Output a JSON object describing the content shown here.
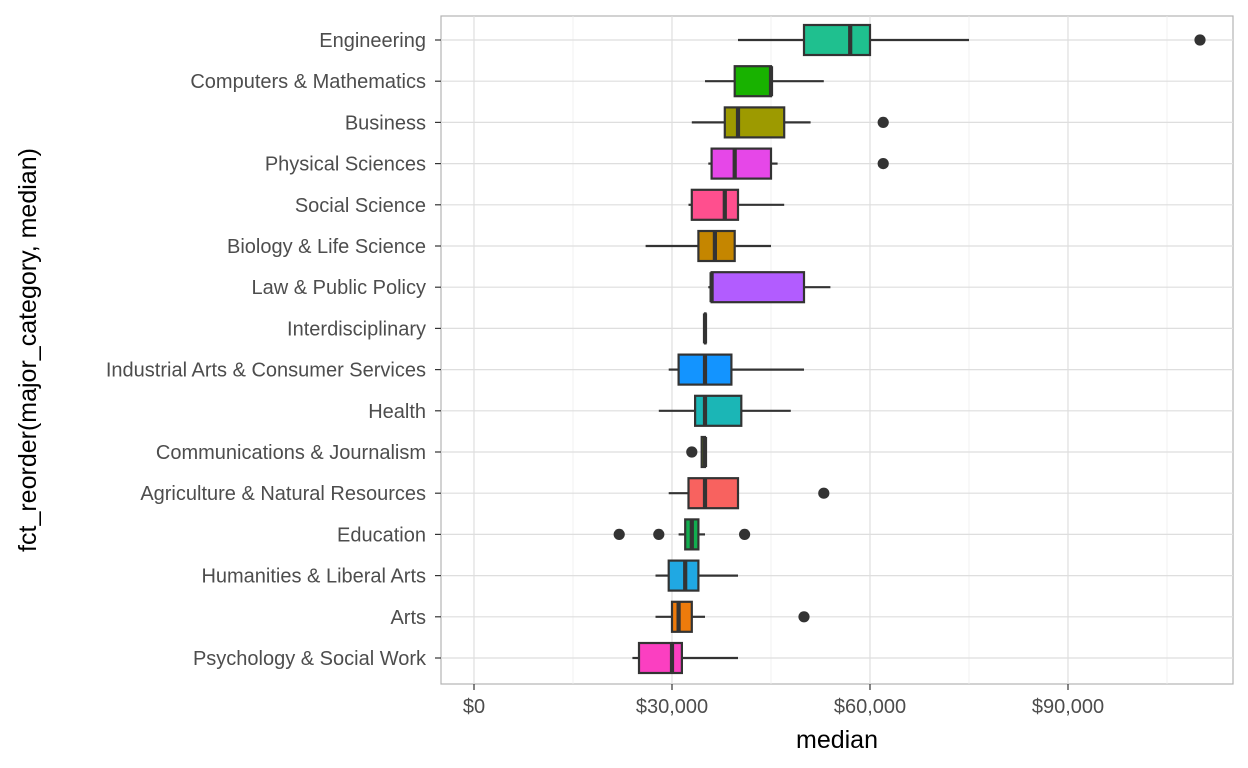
{
  "chart_data": {
    "type": "boxplot",
    "orientation": "horizontal",
    "xlabel": "median",
    "ylabel": "fct_reorder(major_category, median)",
    "xlim": [
      -5000,
      115000
    ],
    "xticks": [
      0,
      30000,
      60000,
      90000
    ],
    "xtick_labels": [
      "$0",
      "$30,000",
      "$60,000",
      "$90,000"
    ],
    "grid": true,
    "legend": "none",
    "categories": [
      {
        "name": "Engineering",
        "color": "#1fc08f",
        "whisker_low": 40000,
        "q1": 50000,
        "median": 57000,
        "q3": 60000,
        "whisker_high": 75000,
        "outliers": [
          110000
        ]
      },
      {
        "name": "Computers & Mathematics",
        "color": "#18b200",
        "whisker_low": 35000,
        "q1": 39500,
        "median": 45000,
        "q3": 45000,
        "whisker_high": 53000,
        "outliers": []
      },
      {
        "name": "Business",
        "color": "#9d9a00",
        "whisker_low": 33000,
        "q1": 38000,
        "median": 40000,
        "q3": 47000,
        "whisker_high": 51000,
        "outliers": [
          62000
        ]
      },
      {
        "name": "Physical Sciences",
        "color": "#e647e8",
        "whisker_low": 35500,
        "q1": 36000,
        "median": 39500,
        "q3": 45000,
        "whisker_high": 46000,
        "outliers": [
          62000
        ]
      },
      {
        "name": "Social Science",
        "color": "#ff4f8e",
        "whisker_low": 32500,
        "q1": 33000,
        "median": 38000,
        "q3": 40000,
        "whisker_high": 47000,
        "outliers": []
      },
      {
        "name": "Biology & Life Science",
        "color": "#c58600",
        "whisker_low": 26000,
        "q1": 34000,
        "median": 36500,
        "q3": 39500,
        "whisker_high": 45000,
        "outliers": []
      },
      {
        "name": "Law & Public Policy",
        "color": "#b25cff",
        "whisker_low": 35500,
        "q1": 36000,
        "median": 36000,
        "q3": 50000,
        "whisker_high": 54000,
        "outliers": []
      },
      {
        "name": "Interdisciplinary",
        "color": "#00bfc4",
        "whisker_low": 35000,
        "q1": 35000,
        "median": 35000,
        "q3": 35000,
        "whisker_high": 35000,
        "outliers": []
      },
      {
        "name": "Industrial Arts & Consumer Services",
        "color": "#1394ff",
        "whisker_low": 29500,
        "q1": 31000,
        "median": 35000,
        "q3": 39000,
        "whisker_high": 50000,
        "outliers": []
      },
      {
        "name": "Health",
        "color": "#1bb6b6",
        "whisker_low": 28000,
        "q1": 33500,
        "median": 35000,
        "q3": 40500,
        "whisker_high": 48000,
        "outliers": []
      },
      {
        "name": "Communications & Journalism",
        "color": "#7cae00",
        "whisker_low": 34500,
        "q1": 34500,
        "median": 35000,
        "q3": 35000,
        "whisker_high": 35000,
        "outliers": [
          33000
        ]
      },
      {
        "name": "Agriculture & Natural Resources",
        "color": "#f8625f",
        "whisker_low": 29500,
        "q1": 32500,
        "median": 35000,
        "q3": 40000,
        "whisker_high": 40000,
        "outliers": [
          53000
        ]
      },
      {
        "name": "Education",
        "color": "#12ad4f",
        "whisker_low": 31000,
        "q1": 32000,
        "median": 33000,
        "q3": 34000,
        "whisker_high": 35000,
        "outliers": [
          22000,
          28000,
          41000
        ]
      },
      {
        "name": "Humanities & Liberal Arts",
        "color": "#20a8e3",
        "whisker_low": 27500,
        "q1": 29500,
        "median": 32000,
        "q3": 34000,
        "whisker_high": 40000,
        "outliers": []
      },
      {
        "name": "Arts",
        "color": "#ed7b0c",
        "whisker_low": 27500,
        "q1": 30000,
        "median": 31000,
        "q3": 33000,
        "whisker_high": 35000,
        "outliers": [
          50000
        ]
      },
      {
        "name": "Psychology & Social Work",
        "color": "#fb3fc1",
        "whisker_low": 24000,
        "q1": 25000,
        "median": 30000,
        "q3": 31500,
        "whisker_high": 40000,
        "outliers": []
      }
    ]
  }
}
